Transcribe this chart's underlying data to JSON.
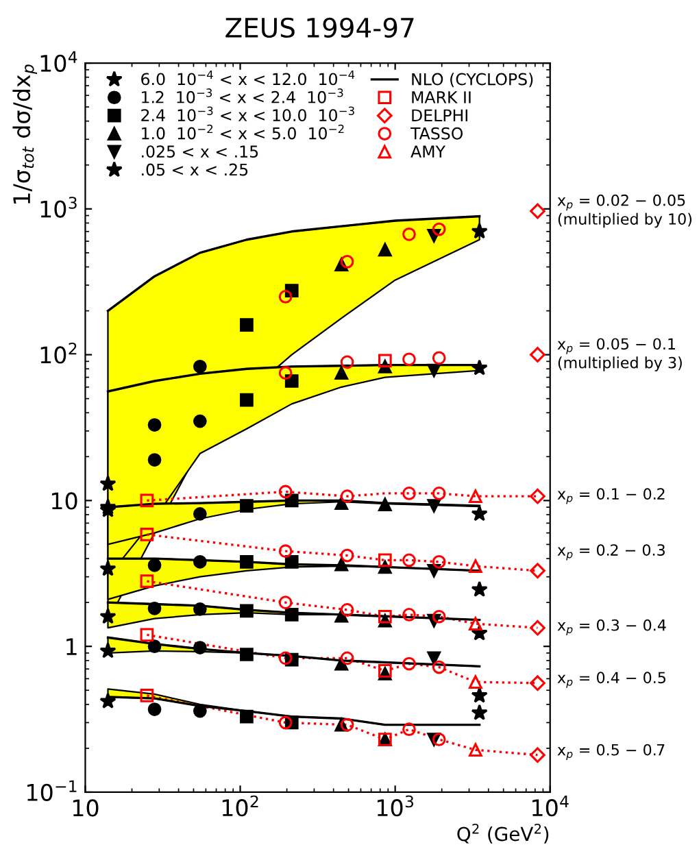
{
  "chart_data": {
    "type": "scatter",
    "title": "ZEUS 1994-97",
    "xlabel": "Q$^{2}$ (GeV$^{2}$)",
    "ylabel": "1/σ$_{tot}$ dσ/dx$_{p}$",
    "log": "xy",
    "xlim": [
      10,
      10000
    ],
    "ylim": [
      0.1,
      10000
    ],
    "xticks": [
      10,
      {
        "value": 100,
        "label": "10$^{2}$"
      },
      {
        "value": 1000,
        "label": "10$^{3}$"
      },
      {
        "value": 10000,
        "label": "10$^{4}$"
      }
    ],
    "yticks": [
      {
        "value": 0.1,
        "label": "10$^{−1}$"
      },
      1,
      10,
      {
        "value": 100,
        "label": "10$^{2}$"
      },
      {
        "value": 1000,
        "label": "10$^{3}$"
      },
      {
        "value": 10000,
        "label": "10$^{4}$"
      }
    ],
    "legend": "top",
    "grid": false,
    "series": [
      {
        "name": "6.0  10$^{−4}$ < x < 12.0  10$^{−4}$",
        "type": "scatter",
        "marker": "star",
        "color": "#000000",
        "x": [
          14,
          14,
          14,
          14,
          14,
          14,
          14
        ],
        "values": [
          13,
          9,
          8.6,
          3.4,
          1.6,
          0.93,
          0.42
        ]
      },
      {
        "name": "1.2  10$^{−3}$ < x < 2.4  10$^{−3}$",
        "type": "scatter",
        "marker": "circle",
        "color": "#000000",
        "x": [
          28,
          28,
          28,
          28,
          28,
          28,
          55,
          55,
          55,
          55,
          55,
          55,
          55
        ],
        "values": [
          33,
          19,
          3.6,
          1.82,
          1.0,
          0.37,
          83,
          35,
          8.1,
          3.8,
          1.8,
          0.98,
          0.36
        ]
      },
      {
        "name": "2.4  10$^{−3}$ < x < 10.0  10$^{−3}$",
        "type": "scatter",
        "marker": "square",
        "color": "#000000",
        "x": [
          110,
          110,
          110,
          110,
          110,
          110,
          110,
          215,
          215,
          215,
          215,
          215,
          215,
          215
        ],
        "values": [
          160,
          49,
          9.2,
          3.8,
          1.75,
          0.88,
          0.33,
          275,
          66,
          10.0,
          3.8,
          1.65,
          0.81,
          0.3
        ]
      },
      {
        "name": "1.0  10$^{−2}$ < x < 5.0  10$^{−2}$",
        "type": "scatter",
        "marker": "triangle",
        "color": "#000000",
        "x": [
          450,
          450,
          450,
          450,
          450,
          450,
          450,
          860,
          860,
          860,
          860,
          860,
          860,
          860
        ],
        "values": [
          415,
          75,
          9.6,
          3.65,
          1.62,
          0.76,
          0.29,
          525,
          83,
          9.4,
          3.5,
          1.5,
          0.65,
          0.23
        ]
      },
      {
        "name": ".025 < x < .15",
        "type": "scatter",
        "marker": "triangle_down",
        "color": "#000000",
        "x": [
          1780,
          1780,
          1780,
          1780,
          1780,
          1780,
          1780
        ],
        "values": [
          655,
          78,
          9.2,
          3.3,
          1.5,
          0.83,
          0.23
        ]
      },
      {
        "name": ".05 < x < .25",
        "type": "scatter",
        "marker": "star",
        "color": "#000000",
        "x": [
          3500,
          3500,
          3500,
          3500,
          3500,
          3500,
          3500
        ],
        "values": [
          700,
          81,
          8.1,
          2.45,
          1.23,
          0.46,
          0.35
        ]
      },
      {
        "name": "NLO (CYCLOPS)",
        "type": "line",
        "color": "#000000",
        "x": [
          14,
          28,
          55,
          110,
          215,
          450,
          1000,
          3500
        ],
        "values": [
          200,
          345,
          500,
          615,
          700,
          760,
          830,
          890
        ],
        "lower": [
          1.5,
          6,
          23,
          54,
          100,
          178,
          325,
          615
        ],
        "upper": [
          200,
          345,
          500,
          615,
          700,
          760,
          830,
          890
        ]
      },
      {
        "type": "line",
        "color": "#000000",
        "x": [
          14,
          28,
          55,
          110,
          215,
          450,
          860,
          1780,
          3500
        ],
        "values": [
          56,
          66,
          74,
          80,
          83,
          84,
          85,
          85,
          85
        ],
        "lower": [
          3.0,
          7.5,
          21,
          31,
          46,
          60,
          70,
          74,
          78
        ],
        "upper": [
          56,
          66,
          74,
          80,
          83,
          84,
          85,
          85,
          85
        ]
      },
      {
        "type": "line",
        "color": "#000000",
        "x": [
          14,
          28,
          55,
          110,
          215,
          450,
          860,
          1780,
          3500
        ],
        "values": [
          9.0,
          9.5,
          9.6,
          9.8,
          10.0,
          10.0,
          9.6,
          9.4,
          9.2
        ],
        "lower": [
          5.0,
          6.0,
          7.5,
          8.7,
          9.5,
          9.8,
          9.5,
          9.3,
          9.1
        ],
        "upper": [
          9.0,
          9.5,
          9.6,
          9.8,
          10.0,
          10.0,
          9.6,
          9.4,
          9.2
        ]
      },
      {
        "type": "line",
        "color": "#000000",
        "x": [
          14,
          28,
          55,
          110,
          215,
          450,
          860,
          3500
        ],
        "values": [
          4.0,
          4.0,
          3.9,
          3.8,
          3.65,
          3.6,
          3.5,
          3.3
        ],
        "lower": [
          2.1,
          2.6,
          3.0,
          3.3,
          3.5,
          3.55,
          3.5,
          3.3
        ],
        "upper": [
          4.0,
          4.0,
          3.9,
          3.8,
          3.65,
          3.6,
          3.5,
          3.3
        ]
      },
      {
        "type": "line",
        "color": "#000000",
        "x": [
          14,
          28,
          55,
          110,
          215,
          450,
          3500
        ],
        "values": [
          2.0,
          1.95,
          1.9,
          1.78,
          1.7,
          1.65,
          1.52
        ],
        "lower": [
          1.34,
          1.55,
          1.65,
          1.7,
          1.65,
          1.65,
          1.52
        ],
        "upper": [
          2.0,
          1.95,
          1.9,
          1.78,
          1.7,
          1.65,
          1.52
        ]
      },
      {
        "type": "line",
        "color": "#000000",
        "x": [
          14,
          28,
          55,
          110,
          215,
          450,
          3500
        ],
        "values": [
          1.15,
          1.04,
          0.96,
          0.9,
          0.86,
          0.8,
          0.73
        ],
        "lower": [
          0.9,
          0.93,
          0.92,
          0.9,
          0.86,
          0.8,
          0.73
        ],
        "upper": [
          1.15,
          1.04,
          0.96,
          0.9,
          0.86,
          0.8,
          0.73
        ]
      },
      {
        "type": "line",
        "color": "#000000",
        "x": [
          14,
          28,
          55,
          110,
          215,
          450,
          860,
          3500
        ],
        "values": [
          0.45,
          0.44,
          0.39,
          0.36,
          0.33,
          0.32,
          0.29,
          0.29
        ],
        "lower": [
          0.45,
          0.44,
          0.39,
          0.36,
          0.33,
          0.32,
          0.29,
          0.29
        ],
        "upper": [
          0.51,
          0.47,
          0.4,
          0.36,
          0.33,
          0.32,
          0.29,
          0.29
        ]
      },
      {
        "name": "MARK II",
        "type": "scatter",
        "marker": "square",
        "color": "#ff0000",
        "x": [
          860,
          25,
          25,
          860,
          25,
          860,
          25,
          860,
          25,
          860
        ],
        "values": [
          91,
          10.0,
          5.85,
          3.9,
          2.8,
          1.6,
          1.2,
          0.68,
          0.46,
          0.23
        ]
      },
      {
        "name": "DELPHI",
        "type": "scatter",
        "marker": "diamond",
        "color": "#ff0000",
        "x": [
          8300,
          8300,
          8300,
          8300,
          8300,
          8300,
          8300
        ],
        "values": [
          965,
          100,
          10.7,
          3.3,
          1.34,
          0.56,
          0.18
        ]
      },
      {
        "name": "TASSO",
        "type": "scatter",
        "marker": "circle",
        "color": "#ff0000",
        "x": [
          196,
          490,
          1230,
          1920,
          196,
          490,
          1230,
          1920,
          196,
          490,
          1230,
          1920,
          196,
          490,
          1230,
          1920,
          196,
          490,
          1230,
          1920,
          196,
          490,
          1230,
          1920,
          196,
          490,
          1230,
          1920
        ],
        "values": [
          250,
          435,
          670,
          725,
          75,
          89,
          93,
          95,
          11.5,
          10.7,
          11.2,
          11.2,
          4.5,
          4.2,
          3.9,
          3.8,
          2.0,
          1.78,
          1.65,
          1.6,
          0.83,
          0.83,
          0.76,
          0.72,
          0.3,
          0.29,
          0.27,
          0.23
        ]
      },
      {
        "name": "AMY",
        "type": "scatter",
        "marker": "triangle",
        "color": "#ff0000",
        "x": [
          3300,
          3300,
          3300,
          3300,
          3300
        ],
        "values": [
          10.7,
          3.55,
          1.43,
          0.57,
          0.195
        ]
      },
      {
        "type": "line",
        "line_style": "dotted",
        "color": "#ff0000",
        "x": [
          25,
          196,
          490,
          860,
          1230,
          1920,
          3300,
          8300
        ],
        "values": [
          10.0,
          11.5,
          10.7,
          11.2,
          11.2,
          11.2,
          10.7,
          10.7
        ]
      },
      {
        "type": "line",
        "line_style": "dotted",
        "color": "#ff0000",
        "x": [
          25,
          196,
          490,
          860,
          1230,
          1920,
          3300,
          8300
        ],
        "values": [
          5.85,
          4.5,
          4.2,
          3.9,
          3.9,
          3.8,
          3.55,
          3.3
        ]
      },
      {
        "type": "line",
        "line_style": "dotted",
        "color": "#ff0000",
        "x": [
          25,
          196,
          490,
          860,
          1230,
          1920,
          3300,
          8300
        ],
        "values": [
          2.8,
          2.0,
          1.78,
          1.6,
          1.65,
          1.6,
          1.43,
          1.34
        ]
      },
      {
        "type": "line",
        "line_style": "dotted",
        "color": "#ff0000",
        "x": [
          25,
          196,
          490,
          860,
          1230,
          1920,
          3300,
          8300
        ],
        "values": [
          1.2,
          0.83,
          0.83,
          0.68,
          0.76,
          0.72,
          0.57,
          0.56
        ]
      },
      {
        "type": "line",
        "line_style": "dotted",
        "color": "#ff0000",
        "x": [
          25,
          196,
          490,
          860,
          1230,
          1920,
          3300,
          8300
        ],
        "values": [
          0.46,
          0.3,
          0.29,
          0.23,
          0.27,
          0.23,
          0.195,
          0.18
        ]
      }
    ],
    "annotations": [
      "x$_{p}$ = 0.02 − 0.05\n(multiplied by 10)",
      "x$_{p}$ = 0.05 − 0.1\n(multiplied by 3)",
      "x$_{p}$ = 0.1 − 0.2",
      "x$_{p}$ = 0.2 − 0.3",
      "x$_{p}$ = 0.3 − 0.4",
      "x$_{p}$ = 0.4 − 0.5",
      "x$_{p}$ = 0.5 − 0.7"
    ]
  }
}
